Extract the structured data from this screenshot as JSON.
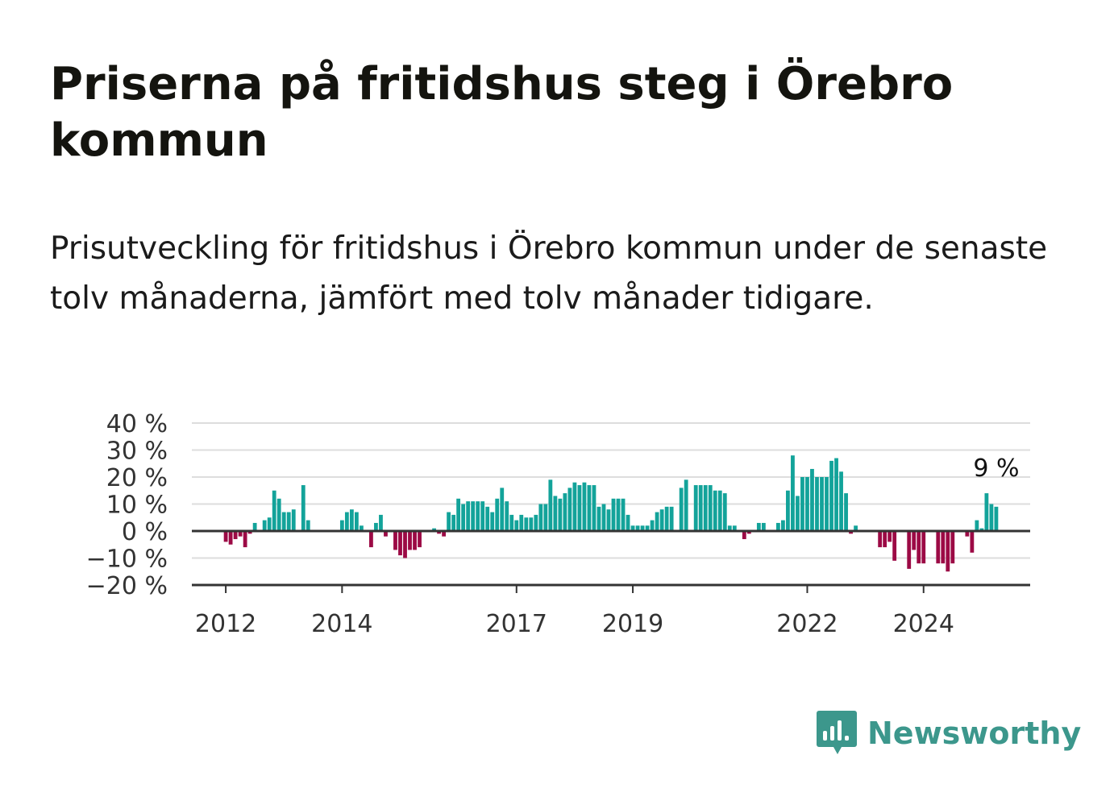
{
  "title": "Priserna på fritidshus steg i Örebro kommun",
  "subtitle": "Prisutveckling för fritidshus i Örebro kommun under de senaste tolv månaderna, jämfört med tolv månader tidigare.",
  "brand": {
    "name": "Newsworthy",
    "icon": "newsworthy-logo-icon",
    "color": "#3c978c"
  },
  "colors": {
    "positive": "#13a39a",
    "negative": "#9c0a45",
    "grid": "#dddddd",
    "axis": "#333333"
  },
  "chart_data": {
    "type": "bar",
    "ylim": [
      -20,
      40
    ],
    "yticks": [
      40,
      30,
      20,
      10,
      0,
      -10,
      -20
    ],
    "ytick_labels": [
      "40 %",
      "30 %",
      "20 %",
      "10 %",
      "0 %",
      "−10 %",
      "−20 %"
    ],
    "xticks": [
      "2012",
      "2014",
      "2017",
      "2019",
      "2022",
      "2024"
    ],
    "xlim": [
      "2011-06",
      "2025-11"
    ],
    "grid": true,
    "last_value_label": "9 %",
    "series": [
      {
        "start": "2011-10",
        "frequency": "monthly",
        "values": [
          null,
          null,
          null,
          -4,
          -5,
          -3,
          -2,
          -6,
          -1,
          3,
          null,
          4,
          5,
          15,
          12,
          7,
          7,
          8,
          null,
          17,
          4,
          null,
          null,
          null,
          null,
          null,
          null,
          4,
          7,
          8,
          7,
          2,
          null,
          -6,
          3,
          6,
          -2,
          null,
          -7,
          -9,
          -10,
          -7,
          -7,
          -6,
          null,
          null,
          1,
          -1,
          -2,
          7,
          6,
          12,
          10,
          11,
          11,
          11,
          11,
          9,
          7,
          12,
          16,
          11,
          6,
          4,
          6,
          5,
          5,
          6,
          10,
          10,
          19,
          13,
          12,
          14,
          16,
          18,
          17,
          18,
          17,
          17,
          9,
          10,
          8,
          12,
          12,
          12,
          6,
          2,
          2,
          2,
          2,
          4,
          7,
          8,
          9,
          9,
          null,
          16,
          19,
          null,
          17,
          17,
          17,
          17,
          15,
          15,
          14,
          2,
          2,
          null,
          -3,
          -1,
          null,
          3,
          3,
          null,
          null,
          3,
          4,
          15,
          28,
          13,
          20,
          20,
          23,
          20,
          20,
          20,
          26,
          27,
          22,
          14,
          -1,
          2,
          null,
          null,
          null,
          null,
          -6,
          -6,
          -4,
          -11,
          null,
          null,
          -14,
          -7,
          -12,
          -12,
          null,
          null,
          -12,
          -12,
          -15,
          -12,
          null,
          null,
          -2,
          -8,
          4,
          1,
          14,
          10,
          9
        ]
      }
    ]
  }
}
